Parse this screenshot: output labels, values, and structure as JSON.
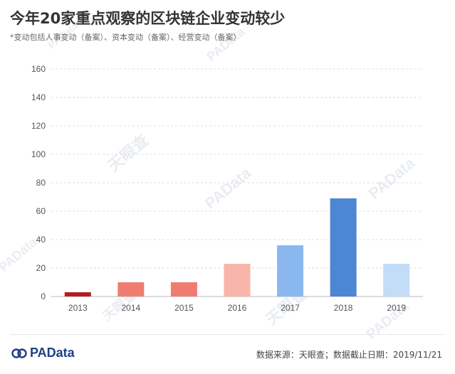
{
  "header": {
    "title": "今年20家重点观察的区块链企业变动较少",
    "subtitle": "*变动包括人事变动（备案）、资本变动（备案）、经营变动（备案）"
  },
  "footer": {
    "brand": "PAData",
    "source": "数据来源：天眼查；数据截止日期：2019/11/21"
  },
  "watermarks": {
    "brand": "PAData",
    "tianyancha": "天眼查"
  },
  "chart_data": {
    "type": "bar",
    "categories": [
      "2013",
      "2014",
      "2015",
      "2016",
      "2017",
      "2018",
      "2019"
    ],
    "values": [
      3,
      10,
      10,
      23,
      36,
      69,
      23
    ],
    "colors": [
      "#b01f24",
      "#f07c70",
      "#f07c70",
      "#f8b5aa",
      "#8ab8ee",
      "#4d86d4",
      "#c3dcf7"
    ],
    "ylim": [
      0,
      160
    ],
    "yticks": [
      0,
      20,
      40,
      60,
      80,
      100,
      120,
      140,
      160
    ],
    "grid": true,
    "xlabel": "",
    "ylabel": ""
  }
}
